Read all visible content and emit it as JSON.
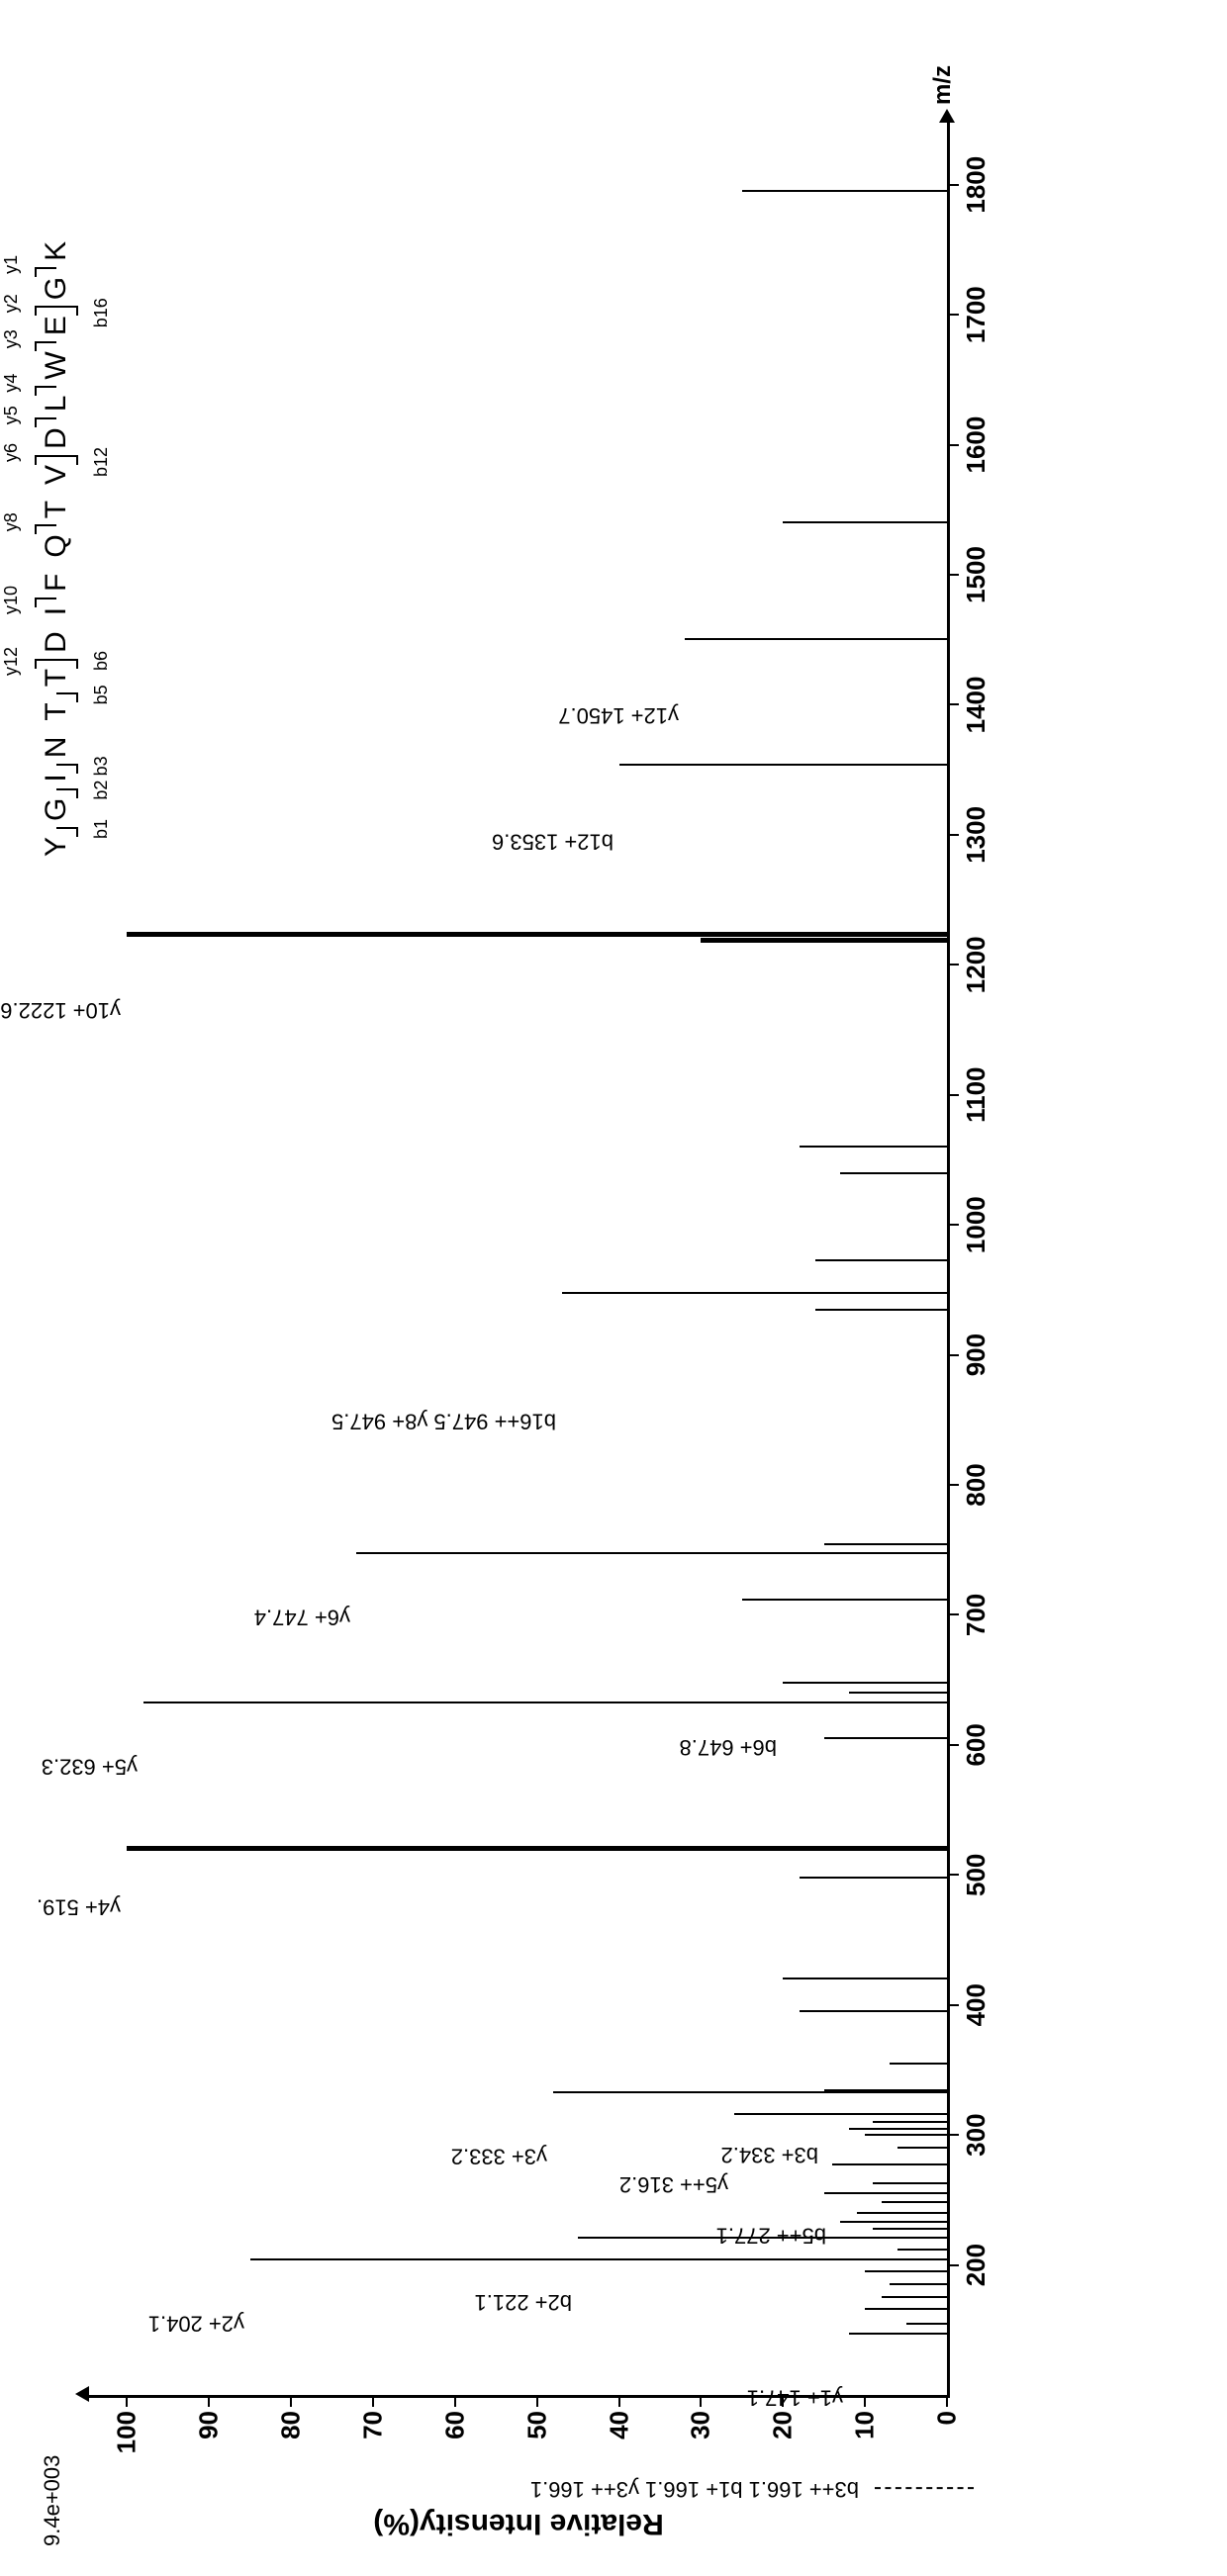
{
  "chart": {
    "type": "mass-spectrum",
    "exp_label": "9.4e+003",
    "ylabel": "Relative  Intensity(%)",
    "xlabel": "m/z",
    "background_color": "#ffffff",
    "axis_color": "#000000",
    "peak_color": "#000000",
    "font_family": "Arial",
    "tick_fontsize": 26,
    "label_fontsize": 30,
    "peak_label_fontsize": 22,
    "xlim": [
      100,
      1850
    ],
    "ylim": [
      0,
      105
    ],
    "yticks": [
      0,
      10,
      20,
      30,
      40,
      50,
      60,
      70,
      80,
      90,
      100
    ],
    "xticks": [
      200,
      300,
      400,
      500,
      600,
      700,
      800,
      900,
      1000,
      1100,
      1200,
      1300,
      1400,
      1500,
      1600,
      1700,
      1800
    ],
    "peaks": [
      {
        "mz": 147.1,
        "intensity": 12,
        "label": "y1+ 147.1"
      },
      {
        "mz": 155,
        "intensity": 5
      },
      {
        "mz": 166.1,
        "intensity": 10,
        "label": "b3++ 166.1  b1+ 166.1  y3++ 166.1",
        "dashed": true
      },
      {
        "mz": 175,
        "intensity": 8
      },
      {
        "mz": 185,
        "intensity": 7
      },
      {
        "mz": 195,
        "intensity": 10
      },
      {
        "mz": 204.1,
        "intensity": 85,
        "label": "y2+ 204.1"
      },
      {
        "mz": 212,
        "intensity": 6
      },
      {
        "mz": 221.1,
        "intensity": 45,
        "label": "b2+ 221.1"
      },
      {
        "mz": 228,
        "intensity": 9
      },
      {
        "mz": 233,
        "intensity": 13
      },
      {
        "mz": 240,
        "intensity": 11
      },
      {
        "mz": 248,
        "intensity": 8
      },
      {
        "mz": 255,
        "intensity": 15
      },
      {
        "mz": 263,
        "intensity": 9
      },
      {
        "mz": 277.1,
        "intensity": 14,
        "label": "b5++ 277.1"
      },
      {
        "mz": 290,
        "intensity": 6
      },
      {
        "mz": 300,
        "intensity": 10
      },
      {
        "mz": 305,
        "intensity": 12
      },
      {
        "mz": 310,
        "intensity": 9
      },
      {
        "mz": 316.2,
        "intensity": 26,
        "label": "y5++ 316.2"
      },
      {
        "mz": 333.2,
        "intensity": 48,
        "label": "y3+ 333.2"
      },
      {
        "mz": 334.2,
        "intensity": 15,
        "label": "b3+ 334.2"
      },
      {
        "mz": 355,
        "intensity": 7
      },
      {
        "mz": 395,
        "intensity": 18
      },
      {
        "mz": 420,
        "intensity": 20
      },
      {
        "mz": 498,
        "intensity": 18
      },
      {
        "mz": 519,
        "intensity": 100,
        "label": "y4+ 519.",
        "thick": true
      },
      {
        "mz": 605,
        "intensity": 15
      },
      {
        "mz": 632.3,
        "intensity": 98,
        "label": "y5+ 632.3"
      },
      {
        "mz": 640,
        "intensity": 12
      },
      {
        "mz": 647.8,
        "intensity": 20,
        "label": "b6+ 647.8"
      },
      {
        "mz": 712,
        "intensity": 25
      },
      {
        "mz": 747.4,
        "intensity": 72,
        "label": "y6+ 747.4"
      },
      {
        "mz": 754,
        "intensity": 15
      },
      {
        "mz": 935,
        "intensity": 16
      },
      {
        "mz": 947.5,
        "intensity": 47,
        "label": "b16++ 947.5  y8+ 947.5"
      },
      {
        "mz": 973,
        "intensity": 16
      },
      {
        "mz": 1040,
        "intensity": 13
      },
      {
        "mz": 1060,
        "intensity": 18
      },
      {
        "mz": 1218,
        "intensity": 30,
        "thick": true
      },
      {
        "mz": 1222.6,
        "intensity": 100,
        "label": "y10+ 1222.6",
        "thick": true
      },
      {
        "mz": 1353.6,
        "intensity": 40,
        "label": "b12+ 1353.6"
      },
      {
        "mz": 1450.7,
        "intensity": 32,
        "label": "y12+ 1450.7"
      },
      {
        "mz": 1540,
        "intensity": 20
      },
      {
        "mz": 1795,
        "intensity": 25
      }
    ],
    "sequence": {
      "residues": [
        "Y",
        "G",
        "I",
        "N",
        "T",
        "T",
        "D",
        "I",
        "F",
        "Q",
        "T",
        "V",
        "D",
        "L",
        "W",
        "E",
        "G",
        "K"
      ],
      "b_ions": [
        {
          "after_index": 0,
          "label": "b1"
        },
        {
          "after_index": 1,
          "label": "b2"
        },
        {
          "after_index": 2,
          "label": "b3"
        },
        {
          "after_index": 4,
          "label": "b5"
        },
        {
          "after_index": 5,
          "label": "b6"
        },
        {
          "after_index": 11,
          "label": "b12"
        },
        {
          "after_index": 15,
          "label": "b16"
        }
      ],
      "y_ions": [
        {
          "after_index": 5,
          "label": "y12"
        },
        {
          "after_index": 7,
          "label": "y10"
        },
        {
          "after_index": 9,
          "label": "y8"
        },
        {
          "after_index": 11,
          "label": "y6"
        },
        {
          "after_index": 12,
          "label": "y5"
        },
        {
          "after_index": 13,
          "label": "y4"
        },
        {
          "after_index": 14,
          "label": "y3"
        },
        {
          "after_index": 15,
          "label": "y2"
        },
        {
          "after_index": 16,
          "label": "y1"
        }
      ]
    }
  }
}
